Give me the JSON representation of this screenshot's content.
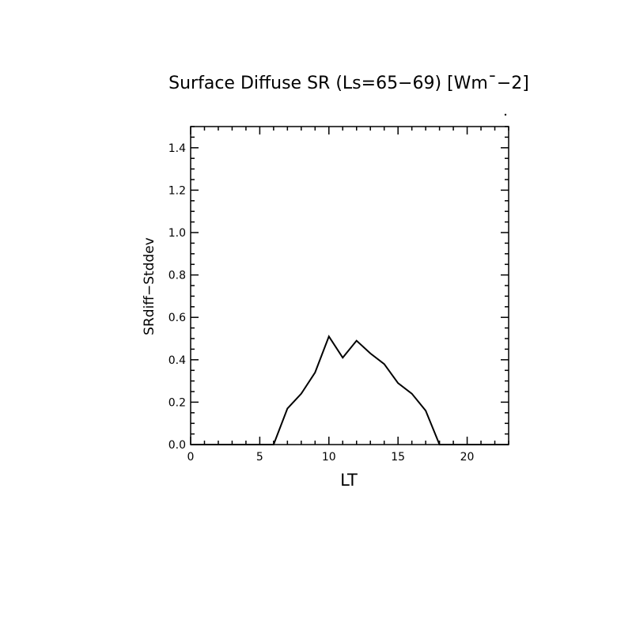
{
  "chart_data": {
    "type": "line",
    "title": "Surface Diffuse SR (Ls=65−69) [Wm¯−2]",
    "xlabel": "LT",
    "ylabel": "SRdiff−Stddev",
    "xlim": [
      0,
      23
    ],
    "ylim": [
      0,
      1.5
    ],
    "xticks": [
      0,
      5,
      10,
      15,
      20
    ],
    "xtick_labels": [
      "0",
      "5",
      "10",
      "15",
      "20"
    ],
    "yticks": [
      0,
      0.2,
      0.4,
      0.6,
      0.8,
      1.0,
      1.2,
      1.4
    ],
    "ytick_labels": [
      "0.0",
      "0.2",
      "0.4",
      "0.6",
      "0.8",
      "1.0",
      "1.2",
      "1.4"
    ],
    "grid": false,
    "line_color": "#000000",
    "series": [
      {
        "x": [
          0,
          1,
          2,
          3,
          4,
          5,
          6,
          7,
          8,
          9,
          10,
          11,
          12,
          13,
          14,
          15,
          16,
          17,
          18,
          19,
          20,
          21,
          22,
          23
        ],
        "y": [
          0,
          0,
          0,
          0,
          0,
          0,
          0,
          0.17,
          0.24,
          0.34,
          0.51,
          0.41,
          0.49,
          0.43,
          0.38,
          0.29,
          0.24,
          0.16,
          0,
          0,
          0,
          0,
          0,
          0
        ]
      }
    ]
  }
}
